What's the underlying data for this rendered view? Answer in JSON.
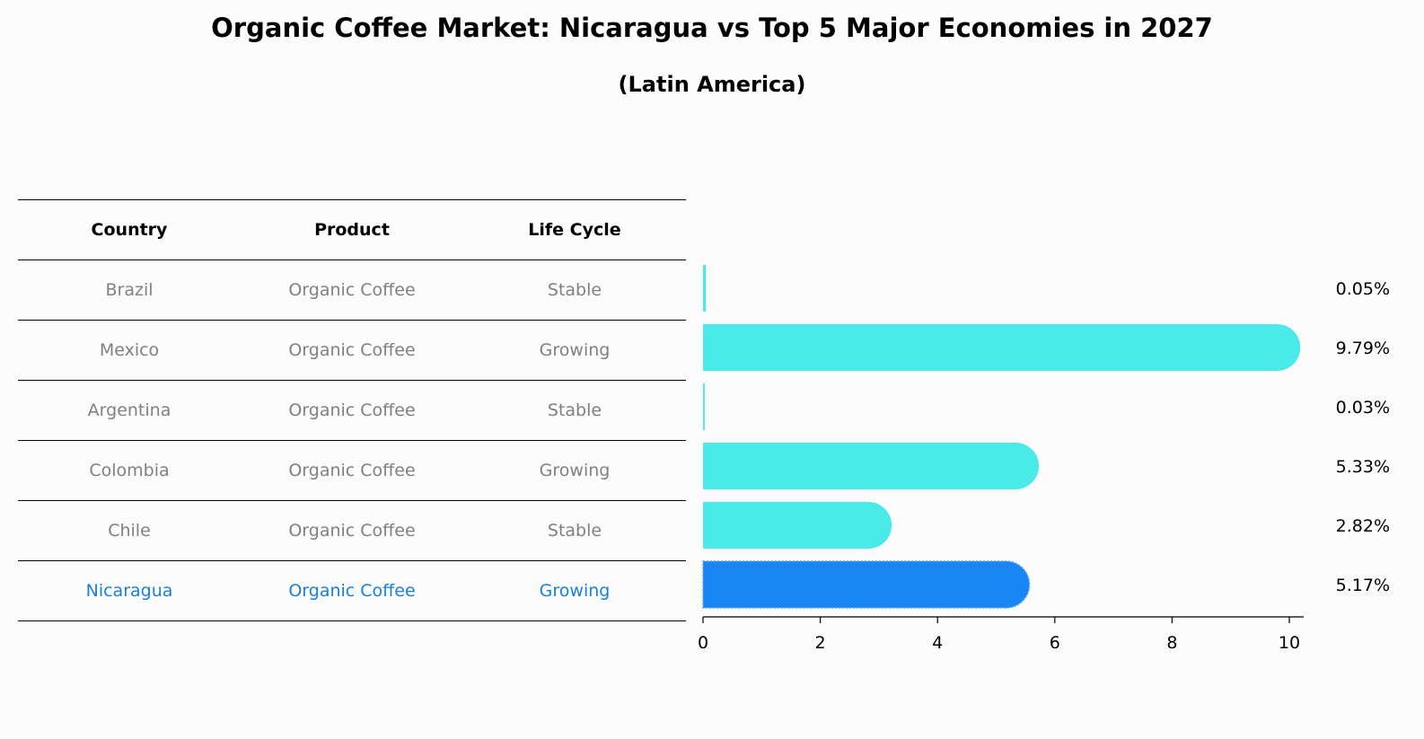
{
  "title": "Organic Coffee Market: Nicaragua vs Top 5 Major Economies in 2027",
  "subtitle": "(Latin America)",
  "table": {
    "headers": [
      "Country",
      "Product",
      "Life Cycle"
    ],
    "rows": [
      {
        "country": "Brazil",
        "product": "Organic Coffee",
        "life_cycle": "Stable",
        "highlight": false
      },
      {
        "country": "Mexico",
        "product": "Organic Coffee",
        "life_cycle": "Growing",
        "highlight": false
      },
      {
        "country": "Argentina",
        "product": "Organic Coffee",
        "life_cycle": "Stable",
        "highlight": false
      },
      {
        "country": "Colombia",
        "product": "Organic Coffee",
        "life_cycle": "Growing",
        "highlight": false
      },
      {
        "country": "Chile",
        "product": "Organic Coffee",
        "life_cycle": "Stable",
        "highlight": false
      },
      {
        "country": "Nicaragua",
        "product": "Organic Coffee",
        "life_cycle": "Growing",
        "highlight": true
      }
    ]
  },
  "colors": {
    "bar": "#4aeaea",
    "highlight_bar": "#1a85f5",
    "highlight_text": "#1a80d9",
    "muted_text": "#808080"
  },
  "chart_data": {
    "type": "bar",
    "orientation": "horizontal",
    "categories": [
      "Brazil",
      "Mexico",
      "Argentina",
      "Colombia",
      "Chile",
      "Nicaragua"
    ],
    "values": [
      0.05,
      9.79,
      0.03,
      5.33,
      2.82,
      5.17
    ],
    "value_labels": [
      "0.05%",
      "9.79%",
      "0.03%",
      "5.33%",
      "2.82%",
      "5.17%"
    ],
    "highlight_category": "Nicaragua",
    "xlim": [
      0,
      10
    ],
    "xticks": [
      0,
      2,
      4,
      6,
      8,
      10
    ],
    "xlabel": "",
    "ylabel": "",
    "grid": false
  }
}
